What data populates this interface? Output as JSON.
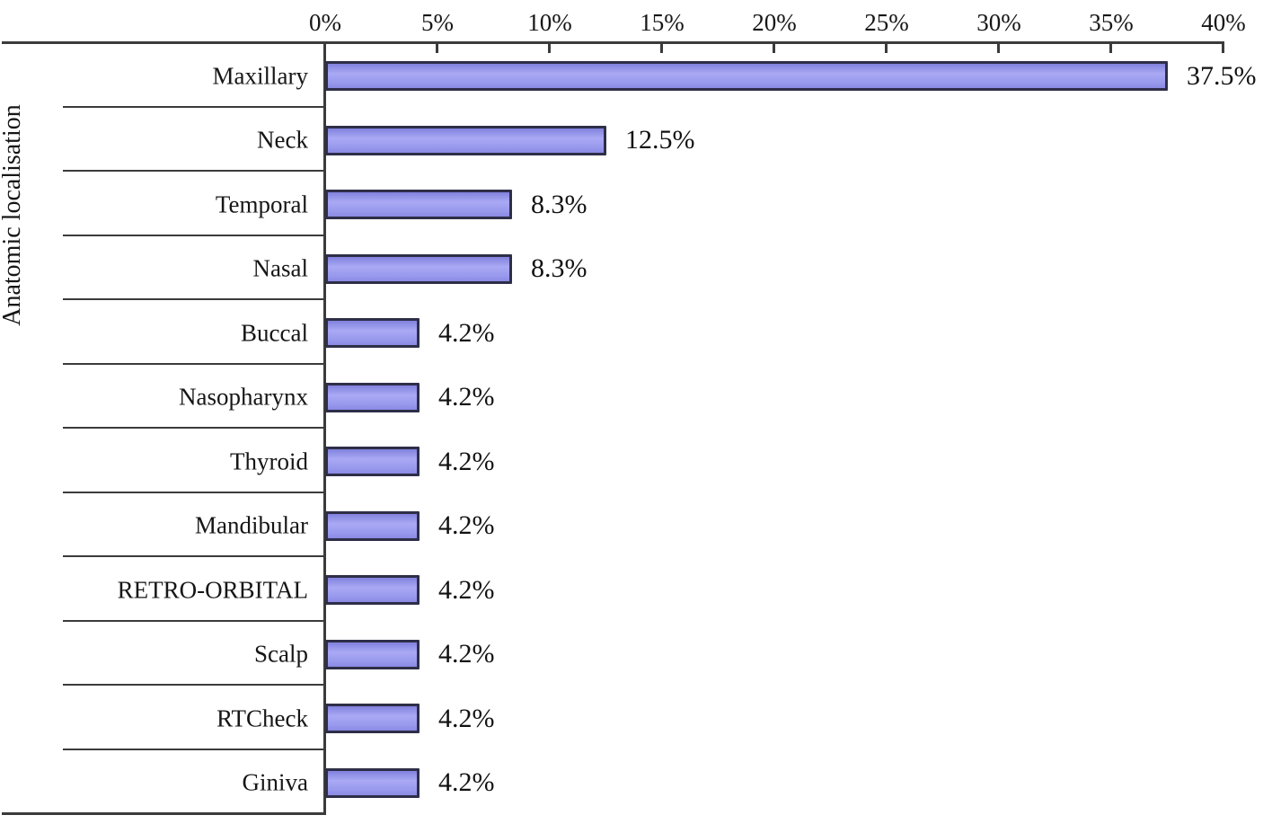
{
  "chart_data": {
    "type": "bar",
    "orientation": "horizontal",
    "title": "",
    "xlabel": "",
    "ylabel": "Anatomic localisation",
    "categories": [
      "Maxillary",
      "Neck",
      "Temporal",
      "Nasal",
      "Buccal",
      "Nasopharynx",
      "Thyroid",
      "Mandibular",
      "RETRO-ORBITAL",
      "Scalp",
      "RTCheck",
      "Giniva"
    ],
    "values": [
      37.5,
      12.5,
      8.3,
      8.3,
      4.2,
      4.2,
      4.2,
      4.2,
      4.2,
      4.2,
      4.2,
      4.2
    ],
    "value_labels": [
      "37.5%",
      "12.5%",
      "8.3%",
      "8.3%",
      "4.2%",
      "4.2%",
      "4.2%",
      "4.2%",
      "4.2%",
      "4.2%",
      "4.2%",
      "4.2%"
    ],
    "x_axis": {
      "position": "top",
      "min": 0,
      "max": 40,
      "tick_step": 5,
      "ticks": [
        "0%",
        "5%",
        "10%",
        "15%",
        "20%",
        "25%",
        "30%",
        "35%",
        "40%"
      ]
    },
    "grid": "category-separator-lines",
    "legend": "none",
    "colors": {
      "bar_fill": "#9a9aee",
      "bar_border": "#2e2e48",
      "axis_line": "#3b3b3b",
      "text": "#161616",
      "background": "#ffffff"
    }
  }
}
